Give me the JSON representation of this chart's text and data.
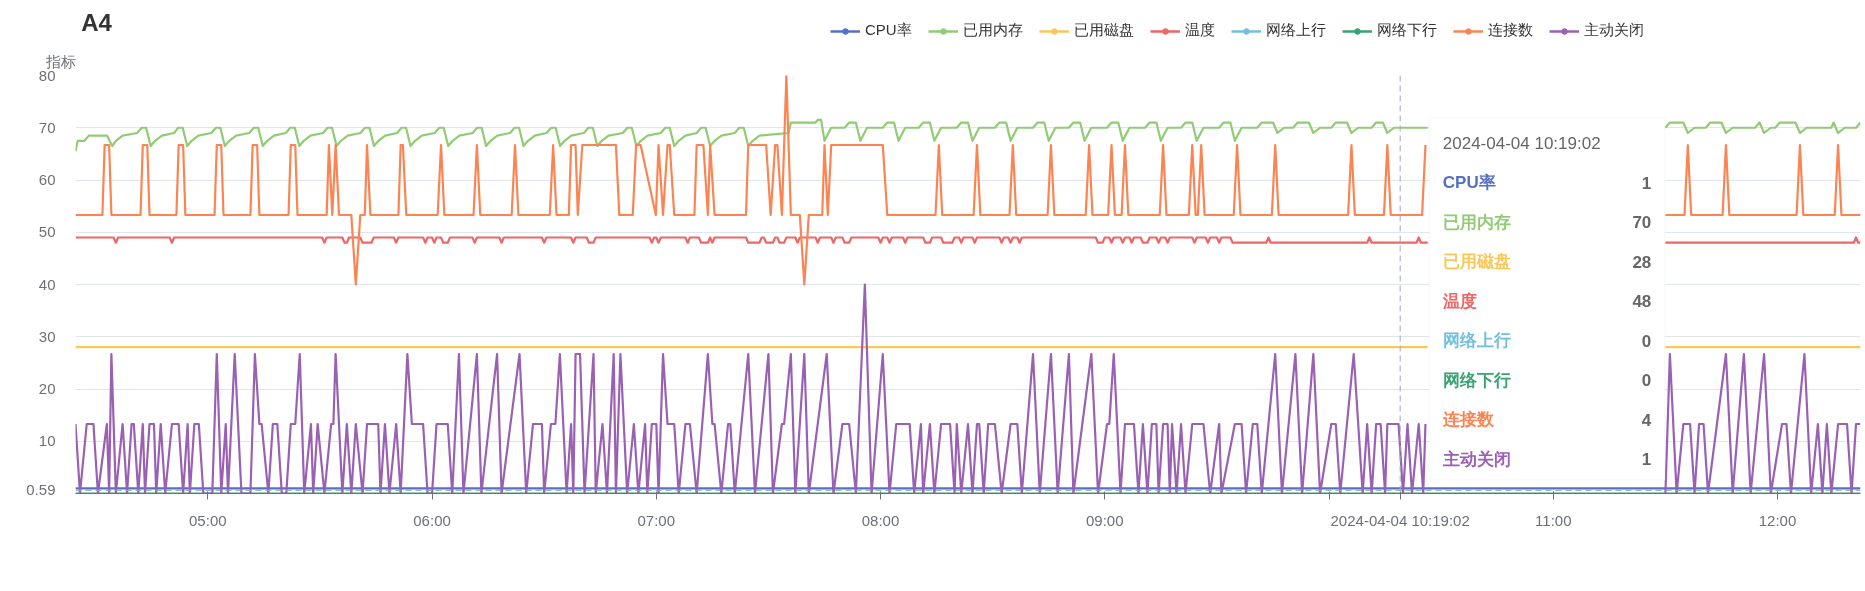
{
  "chart_data": {
    "type": "line",
    "title": "A4",
    "ylabel": "指标",
    "xlim": [
      4.41,
      12.37
    ],
    "ylim": [
      0,
      80
    ],
    "xticks": [
      {
        "value": 5,
        "label": "05:00"
      },
      {
        "value": 6,
        "label": "06:00"
      },
      {
        "value": 7,
        "label": "07:00"
      },
      {
        "value": 8,
        "label": "08:00"
      },
      {
        "value": 9,
        "label": "09:00"
      },
      {
        "value": 10,
        "label": null
      },
      {
        "value": 11,
        "label": "11:00"
      },
      {
        "value": 12,
        "label": "12:00"
      }
    ],
    "yticks": [
      {
        "value": 0,
        "label": null
      },
      10,
      20,
      30,
      40,
      50,
      60,
      70,
      80
    ],
    "grid": "y",
    "legend": "top",
    "series": [
      {
        "name": "CPU率",
        "color": "#5470c6",
        "x": [
          4.41,
          12.37
        ],
        "values": [
          1,
          1
        ]
      },
      {
        "name": "已用内存",
        "color": "#91cc75",
        "x": [
          4.41,
          4.42,
          4.45,
          4.47,
          4.55,
          4.574,
          4.59,
          4.62,
          4.685,
          4.705,
          4.725,
          4.745,
          4.765,
          4.795,
          4.85,
          4.868,
          4.888,
          4.908,
          4.928,
          4.958,
          5.016,
          5.036,
          5.056,
          5.076,
          5.096,
          5.126,
          5.185,
          5.205,
          5.225,
          5.245,
          5.265,
          5.295,
          5.348,
          5.368,
          5.388,
          5.408,
          5.428,
          5.458,
          5.514,
          5.534,
          5.554,
          5.574,
          5.594,
          5.624,
          5.681,
          5.701,
          5.721,
          5.741,
          5.761,
          5.791,
          5.844,
          5.864,
          5.884,
          5.904,
          5.924,
          5.954,
          6.012,
          6.032,
          6.052,
          6.072,
          6.092,
          6.122,
          6.181,
          6.201,
          6.221,
          6.241,
          6.261,
          6.291,
          6.348,
          6.368,
          6.388,
          6.408,
          6.428,
          6.458,
          6.511,
          6.531,
          6.551,
          6.571,
          6.591,
          6.621,
          6.677,
          6.697,
          6.717,
          6.737,
          6.757,
          6.787,
          6.851,
          6.871,
          6.891,
          6.911,
          6.931,
          6.961,
          7.02,
          7.04,
          7.06,
          7.08,
          7.1,
          7.13,
          7.18,
          7.2,
          7.22,
          7.24,
          7.26,
          7.29,
          7.35,
          7.37,
          7.39,
          7.41,
          7.43,
          7.46,
          7.59,
          7.6,
          7.71,
          7.72,
          7.735,
          7.75,
          7.78,
          7.84,
          7.86,
          7.89,
          7.91,
          7.94,
          8.01,
          8.03,
          8.06,
          8.08,
          8.11,
          8.17,
          8.19,
          8.22,
          8.24,
          8.27,
          8.34,
          8.36,
          8.39,
          8.41,
          8.44,
          8.51,
          8.53,
          8.56,
          8.58,
          8.61,
          8.68,
          8.7,
          8.73,
          8.75,
          8.78,
          8.84,
          8.86,
          8.89,
          8.91,
          8.94,
          9.01,
          9.03,
          9.06,
          9.08,
          9.11,
          9.18,
          9.2,
          9.23,
          9.25,
          9.28,
          9.34,
          9.36,
          9.39,
          9.41,
          9.44,
          9.51,
          9.53,
          9.56,
          9.58,
          9.61,
          9.68,
          9.7,
          9.75,
          9.77,
          9.8,
          9.84,
          9.86,
          9.91,
          9.93,
          9.96,
          10.01,
          10.03,
          10.08,
          10.1,
          10.13,
          10.19,
          10.21,
          10.24,
          10.26,
          10.29,
          10.44,
          10.45,
          11.5,
          11.52,
          11.58,
          11.6,
          11.63,
          11.68,
          11.7,
          11.75,
          11.77,
          11.8,
          11.9,
          11.92,
          11.94,
          11.97,
          11.99,
          12.01,
          12.08,
          12.1,
          12.13,
          12.24,
          12.25,
          12.27,
          12.3,
          12.35,
          12.37
        ],
        "values": [
          65.5,
          67.5,
          67.5,
          68.5,
          68.5,
          66.5,
          67.5,
          68.5,
          69,
          70,
          70,
          66.5,
          67.5,
          68.5,
          69,
          70,
          70,
          66.5,
          67.5,
          68.5,
          69,
          70,
          70,
          66.5,
          67.5,
          68.5,
          69,
          70,
          70,
          66.5,
          67.5,
          68.5,
          69,
          70,
          70,
          66.5,
          67.5,
          68.5,
          69,
          70,
          70,
          66.5,
          67.5,
          68.5,
          69,
          70,
          70,
          66.5,
          67.5,
          68.5,
          69,
          70,
          70,
          66.5,
          67.5,
          68.5,
          69,
          70,
          70,
          66.5,
          67.5,
          68.5,
          69,
          70,
          70,
          66.5,
          67.5,
          68.5,
          69,
          70,
          70,
          66.5,
          67.5,
          68.5,
          69,
          70,
          70,
          66.5,
          67.5,
          68.5,
          69,
          70,
          70,
          66.5,
          67.5,
          68.5,
          69,
          70,
          70,
          66.5,
          67.5,
          68.5,
          69,
          70,
          70,
          66.5,
          67.5,
          68.5,
          69,
          70,
          70,
          66.5,
          67.5,
          68.5,
          69,
          70,
          70,
          66.5,
          67.5,
          68.5,
          69,
          71,
          71,
          71.5,
          71.5,
          67.5,
          70,
          70,
          71,
          71,
          67.5,
          70,
          70,
          71,
          71,
          67.5,
          70,
          70,
          71,
          71,
          67.5,
          70,
          70,
          71,
          71,
          67.5,
          70,
          70,
          71,
          71,
          67.5,
          70,
          70,
          71,
          71,
          67.5,
          70,
          70,
          71,
          71,
          67.5,
          70,
          70,
          71,
          71,
          67.5,
          70,
          70,
          71,
          71,
          67.5,
          70,
          70,
          71,
          71,
          67.5,
          70,
          70,
          71,
          71,
          67.5,
          70,
          70,
          71,
          71,
          69,
          70,
          70,
          71,
          71,
          69,
          70,
          70,
          71,
          71,
          69,
          70,
          70,
          71,
          71,
          69,
          70,
          70,
          null,
          70,
          71,
          71,
          69,
          70,
          70,
          71,
          71,
          69,
          70,
          70,
          71,
          69,
          70,
          70,
          71,
          71,
          69,
          70,
          70,
          71,
          69,
          70,
          70,
          71
        ]
      },
      {
        "name": "已用磁盘",
        "color": "#fac858",
        "x": [
          4.41,
          10.44,
          10.45,
          11.5,
          12.37
        ],
        "values": [
          28,
          28,
          null,
          28,
          28
        ]
      },
      {
        "name": "温度",
        "color": "#ee6666",
        "x": [
          4.41,
          4.58,
          4.59,
          4.6,
          4.83,
          4.84,
          4.85,
          5.51,
          5.52,
          5.53,
          5.6,
          5.61,
          5.62,
          5.63,
          5.68,
          5.69,
          5.73,
          5.74,
          5.83,
          5.84,
          5.85,
          5.96,
          5.97,
          5.98,
          6.0,
          6.01,
          6.02,
          6.04,
          6.05,
          6.07,
          6.08,
          6.18,
          6.19,
          6.2,
          6.3,
          6.31,
          6.32,
          6.49,
          6.5,
          6.51,
          6.62,
          6.63,
          6.64,
          6.69,
          6.7,
          6.72,
          6.73,
          6.97,
          6.98,
          6.99,
          7.0,
          7.01,
          7.02,
          7.13,
          7.14,
          7.15,
          7.19,
          7.2,
          7.23,
          7.24,
          7.25,
          7.26,
          7.4,
          7.41,
          7.46,
          7.47,
          7.48,
          7.49,
          7.52,
          7.53,
          7.54,
          7.55,
          7.57,
          7.58,
          7.62,
          7.63,
          7.64,
          7.71,
          7.72,
          7.73,
          7.78,
          7.79,
          7.8,
          7.83,
          7.84,
          7.86,
          7.87,
          7.99,
          8.0,
          8.01,
          8.03,
          8.04,
          8.05,
          8.1,
          8.11,
          8.12,
          8.19,
          8.2,
          8.22,
          8.23,
          8.27,
          8.28,
          8.32,
          8.33,
          8.35,
          8.36,
          8.37,
          8.41,
          8.42,
          8.43,
          8.53,
          8.54,
          8.55,
          8.57,
          8.58,
          8.59,
          8.61,
          8.62,
          8.63,
          8.96,
          8.97,
          8.99,
          9.0,
          9.02,
          9.03,
          9.04,
          9.07,
          9.08,
          9.09,
          9.11,
          9.12,
          9.13,
          9.16,
          9.17,
          9.19,
          9.2,
          9.23,
          9.24,
          9.25,
          9.27,
          9.28,
          9.29,
          9.39,
          9.4,
          9.41,
          9.45,
          9.46,
          9.47,
          9.5,
          9.51,
          9.52,
          9.56,
          9.57,
          9.72,
          9.73,
          9.74,
          10.17,
          10.18,
          10.19,
          10.39,
          10.4,
          10.41,
          10.44,
          10.45,
          11.5,
          12.34,
          12.35,
          12.36,
          12.37
        ],
        "values": [
          49,
          49,
          48,
          49,
          49,
          48,
          49,
          49,
          48,
          49,
          49,
          48,
          48,
          49,
          49,
          48,
          48,
          49,
          49,
          48,
          49,
          49,
          48,
          49,
          49,
          48,
          49,
          49,
          48,
          48,
          49,
          49,
          48,
          49,
          49,
          48,
          49,
          49,
          48,
          49,
          49,
          48,
          49,
          49,
          48,
          48,
          49,
          49,
          48,
          49,
          49,
          48,
          49,
          49,
          48,
          49,
          49,
          48,
          48,
          49,
          48,
          49,
          49,
          48,
          48,
          49,
          49,
          48,
          48,
          49,
          49,
          48,
          48,
          49,
          49,
          48,
          49,
          49,
          48,
          49,
          49,
          48,
          49,
          49,
          48,
          48,
          49,
          49,
          48,
          49,
          49,
          48,
          49,
          49,
          48,
          49,
          49,
          48,
          48,
          49,
          49,
          48,
          48,
          49,
          49,
          48,
          49,
          49,
          48,
          49,
          49,
          48,
          49,
          49,
          48,
          49,
          49,
          48,
          49,
          49,
          48,
          48,
          49,
          49,
          48,
          49,
          49,
          48,
          49,
          49,
          48,
          49,
          49,
          48,
          48,
          49,
          49,
          48,
          49,
          49,
          48,
          49,
          49,
          48,
          49,
          49,
          48,
          49,
          49,
          48,
          49,
          49,
          48,
          48,
          49,
          48,
          48,
          49,
          48,
          48,
          49,
          48,
          48,
          null,
          48,
          48,
          49,
          48,
          48
        ]
      },
      {
        "name": "网络上行",
        "color": "#73c0de"
      },
      {
        "name": "网络下行",
        "color": "#3ba272",
        "x": [
          4.41,
          12.37
        ],
        "values": [
          0,
          0
        ]
      },
      {
        "name": "连接数",
        "color": "#fc8452",
        "x": [
          4.41,
          4.53,
          4.54,
          4.56,
          4.57,
          4.7,
          4.71,
          4.73,
          4.74,
          4.86,
          4.87,
          4.89,
          4.9,
          5.03,
          5.04,
          5.06,
          5.07,
          5.19,
          5.2,
          5.22,
          5.23,
          5.36,
          5.37,
          5.39,
          5.4,
          5.53,
          5.54,
          5.555,
          5.57,
          5.585,
          5.64,
          5.66,
          5.68,
          5.7,
          5.71,
          5.725,
          5.85,
          5.86,
          5.87,
          5.885,
          6.025,
          6.04,
          6.055,
          6.185,
          6.2,
          6.215,
          6.355,
          6.37,
          6.385,
          6.525,
          6.54,
          6.555,
          6.61,
          6.62,
          6.64,
          6.65,
          6.67,
          6.82,
          6.835,
          6.895,
          6.91,
          6.93,
          6.998,
          7.01,
          7.03,
          7.05,
          7.06,
          7.08,
          7.17,
          7.18,
          7.21,
          7.23,
          7.24,
          7.26,
          7.4,
          7.41,
          7.49,
          7.51,
          7.53,
          7.54,
          7.56,
          7.58,
          7.6,
          7.64,
          7.66,
          7.68,
          7.74,
          7.75,
          7.765,
          7.78,
          8.01,
          8.03,
          8.245,
          8.26,
          8.275,
          8.415,
          8.43,
          8.445,
          8.575,
          8.59,
          8.605,
          8.745,
          8.76,
          8.775,
          8.915,
          8.93,
          8.945,
          9.015,
          9.03,
          9.045,
          9.075,
          9.09,
          9.105,
          9.245,
          9.26,
          9.275,
          9.375,
          9.39,
          9.405,
          9.415,
          9.43,
          9.445,
          9.575,
          9.59,
          9.605,
          9.745,
          9.76,
          9.775,
          10.085,
          10.1,
          10.115,
          10.245,
          10.26,
          10.275,
          10.415,
          10.43,
          10.45,
          11.5,
          11.585,
          11.6,
          11.615,
          11.755,
          11.77,
          11.785,
          12.085,
          12.1,
          12.115,
          12.255,
          12.27,
          12.285,
          12.37
        ],
        "values": [
          53.3,
          53.3,
          66.7,
          66.7,
          53.3,
          53.3,
          66.7,
          66.7,
          53.3,
          53.3,
          66.7,
          66.7,
          53.3,
          53.3,
          66.7,
          66.7,
          53.3,
          53.3,
          66.7,
          66.7,
          53.3,
          53.3,
          66.7,
          66.7,
          53.3,
          53.3,
          66.7,
          53.3,
          66.7,
          53.3,
          53.3,
          40,
          53.3,
          53.3,
          66.7,
          53.3,
          53.3,
          66.7,
          66.7,
          53.3,
          53.3,
          66.7,
          53.3,
          53.3,
          66.7,
          53.3,
          53.3,
          66.7,
          53.3,
          53.3,
          66.7,
          53.3,
          53.3,
          66.7,
          66.7,
          53.3,
          66.7,
          66.7,
          53.3,
          53.3,
          66.7,
          66.7,
          53.3,
          66.7,
          53.3,
          66.7,
          66.7,
          53.3,
          53.3,
          66.7,
          66.7,
          53.3,
          66.7,
          53.3,
          53.3,
          66.7,
          66.7,
          53.3,
          66.7,
          66.7,
          53.3,
          80,
          53.3,
          53.3,
          40,
          53.3,
          53.3,
          66.7,
          53.3,
          66.7,
          66.7,
          53.3,
          53.3,
          66.7,
          53.3,
          53.3,
          66.7,
          53.3,
          53.3,
          66.7,
          53.3,
          53.3,
          66.7,
          53.3,
          53.3,
          66.7,
          53.3,
          53.3,
          66.7,
          53.3,
          53.3,
          66.7,
          53.3,
          53.3,
          66.7,
          53.3,
          53.3,
          66.7,
          53.3,
          53.3,
          66.7,
          53.3,
          53.3,
          66.7,
          53.3,
          53.3,
          66.7,
          53.3,
          53.3,
          66.7,
          53.3,
          53.3,
          66.7,
          53.3,
          53.3,
          66.7,
          null,
          53.3,
          53.3,
          66.7,
          53.3,
          53.3,
          66.7,
          53.3,
          53.3,
          66.7,
          53.3,
          53.3,
          66.7,
          53.3,
          53.3
        ]
      },
      {
        "name": "主动关闭",
        "color": "#9a60b4",
        "x": [
          4.41,
          4.43,
          4.46,
          4.49,
          4.51,
          4.55,
          4.56,
          4.57,
          4.59,
          4.62,
          4.64,
          4.66,
          4.67,
          4.69,
          4.71,
          4.72,
          4.74,
          4.76,
          4.77,
          4.79,
          4.81,
          4.84,
          4.87,
          4.89,
          4.91,
          4.92,
          4.94,
          4.96,
          4.98,
          5.02,
          5.04,
          5.06,
          5.08,
          5.09,
          5.12,
          5.15,
          5.19,
          5.21,
          5.23,
          5.24,
          5.27,
          5.29,
          5.31,
          5.33,
          5.35,
          5.37,
          5.39,
          5.41,
          5.43,
          5.46,
          5.47,
          5.49,
          5.52,
          5.55,
          5.56,
          5.57,
          5.6,
          5.62,
          5.64,
          5.66,
          5.69,
          5.71,
          5.76,
          5.77,
          5.79,
          5.81,
          5.84,
          5.86,
          5.89,
          5.91,
          5.96,
          5.98,
          6.0,
          6.02,
          6.07,
          6.09,
          6.12,
          6.14,
          6.2,
          6.22,
          6.29,
          6.31,
          6.39,
          6.42,
          6.45,
          6.49,
          6.5,
          6.53,
          6.55,
          6.57,
          6.6,
          6.62,
          6.63,
          6.64,
          6.66,
          6.68,
          6.72,
          6.73,
          6.76,
          6.78,
          6.81,
          6.82,
          6.84,
          6.87,
          6.9,
          6.92,
          6.95,
          6.96,
          6.98,
          7.0,
          7.01,
          7.03,
          7.05,
          7.08,
          7.1,
          7.13,
          7.15,
          7.18,
          7.23,
          7.25,
          7.26,
          7.29,
          7.32,
          7.33,
          7.35,
          7.41,
          7.44,
          7.5,
          7.52,
          7.56,
          7.57,
          7.6,
          7.62,
          7.66,
          7.68,
          7.76,
          7.79,
          7.83,
          7.86,
          7.89,
          7.93,
          7.96,
          8.01,
          8.04,
          8.07,
          8.13,
          8.15,
          8.18,
          8.19,
          8.22,
          8.24,
          8.27,
          8.31,
          8.33,
          8.34,
          8.36,
          8.39,
          8.41,
          8.43,
          8.44,
          8.46,
          8.48,
          8.51,
          8.54,
          8.58,
          8.61,
          8.63,
          8.68,
          8.71,
          8.76,
          8.79,
          8.84,
          8.86,
          8.94,
          8.97,
          9.01,
          9.02,
          9.04,
          9.07,
          9.09,
          9.13,
          9.15,
          9.17,
          9.19,
          9.21,
          9.23,
          9.24,
          9.26,
          9.28,
          9.29,
          9.3,
          9.32,
          9.34,
          9.36,
          9.39,
          9.44,
          9.47,
          9.51,
          9.52,
          9.58,
          9.61,
          9.63,
          9.66,
          9.68,
          9.7,
          9.76,
          9.79,
          9.85,
          9.88,
          9.93,
          9.96,
          10.01,
          10.03,
          10.05,
          10.11,
          10.15,
          10.17,
          10.19,
          10.21,
          10.23,
          10.25,
          10.26,
          10.31,
          10.33,
          10.35,
          10.37,
          10.4,
          10.42,
          10.43,
          10.45,
          11.5,
          11.52,
          11.55,
          11.58,
          11.61,
          11.63,
          11.65,
          11.67,
          11.69,
          11.77,
          11.8,
          11.85,
          11.88,
          11.94,
          11.97,
          12.02,
          12.04,
          12.06,
          12.12,
          12.15,
          12.18,
          12.2,
          12.22,
          12.24,
          12.27,
          12.31,
          12.33,
          12.35,
          12.37
        ],
        "values": [
          13.3,
          0,
          13.3,
          13.3,
          0,
          13.3,
          0,
          26.7,
          0,
          13.3,
          0,
          13.3,
          13.3,
          0,
          13.3,
          0,
          13.3,
          13.3,
          0,
          13.3,
          0,
          13.3,
          13.3,
          0,
          13.3,
          0,
          13.3,
          13.3,
          0,
          0,
          26.7,
          0,
          13.3,
          0,
          26.7,
          0,
          0,
          26.7,
          13.3,
          13.3,
          0,
          13.3,
          13.3,
          0,
          0,
          13.3,
          13.3,
          26.7,
          0,
          13.3,
          0,
          13.3,
          0,
          13.3,
          13.3,
          26.7,
          0,
          13.3,
          0,
          13.3,
          0,
          13.3,
          13.3,
          0,
          13.3,
          0,
          13.3,
          0,
          26.7,
          13.3,
          13.3,
          0,
          0,
          13.3,
          13.3,
          0,
          26.7,
          0,
          26.7,
          0,
          26.7,
          0,
          26.7,
          0,
          13.3,
          13.3,
          0,
          13.3,
          13.3,
          26.7,
          0,
          13.3,
          0,
          26.7,
          26.7,
          0,
          26.7,
          0,
          13.3,
          0,
          26.7,
          0,
          26.7,
          0,
          13.3,
          0,
          13.3,
          0,
          13.3,
          13.3,
          0,
          26.7,
          13.3,
          13.3,
          0,
          13.3,
          13.3,
          0,
          26.7,
          13.3,
          13.3,
          0,
          13.3,
          13.3,
          0,
          26.7,
          0,
          26.7,
          0,
          13.3,
          13.3,
          26.7,
          0,
          26.7,
          0,
          26.7,
          0,
          13.3,
          13.3,
          0,
          40,
          0,
          26.7,
          0,
          13.3,
          13.3,
          0,
          13.3,
          0,
          13.3,
          0,
          13.3,
          13.3,
          0,
          13.3,
          0,
          13.3,
          0,
          13.3,
          13.3,
          0,
          13.3,
          13.3,
          0,
          13.3,
          13.3,
          0,
          26.7,
          0,
          26.7,
          0,
          26.7,
          0,
          26.7,
          0,
          13.3,
          13.3,
          26.7,
          0,
          13.3,
          13.3,
          0,
          13.3,
          0,
          13.3,
          13.3,
          0,
          13.3,
          13.3,
          0,
          13.3,
          0,
          13.3,
          0,
          13.3,
          13.3,
          0,
          13.3,
          0,
          13.3,
          13.3,
          0,
          13.3,
          13.3,
          0,
          26.7,
          0,
          26.7,
          0,
          26.7,
          0,
          13.3,
          13.3,
          0,
          26.7,
          0,
          13.3,
          0,
          13.3,
          13.3,
          0,
          13.3,
          13.3,
          0,
          13.3,
          0,
          13.3,
          0,
          13.3,
          null,
          0,
          26.7,
          0,
          13.3,
          13.3,
          0,
          13.3,
          13.3,
          0,
          26.7,
          0,
          26.7,
          0,
          26.7,
          0,
          13.3,
          13.3,
          0,
          26.7,
          0,
          13.3,
          0,
          13.3,
          0,
          13.3,
          13.3,
          0,
          13.3,
          13.3
        ]
      }
    ],
    "ref_lines": [
      {
        "axis": "x",
        "value": 10.3172,
        "label": "2024-04-04 10:19:02",
        "line_style": "dashed",
        "color": "#a0a6b8"
      },
      {
        "axis": "y",
        "value": 0.59,
        "label": "0.59",
        "line_style": "dashed",
        "color": "#a0a6b8"
      }
    ],
    "annotations": [
      "2024-04-04 10:19:02",
      "CPU率 1",
      "已用内存 70",
      "已用磁盘 28",
      "温度 48",
      "网络上行 0",
      "网络下行 0",
      "连接数 4",
      "主动关闭 1"
    ]
  }
}
